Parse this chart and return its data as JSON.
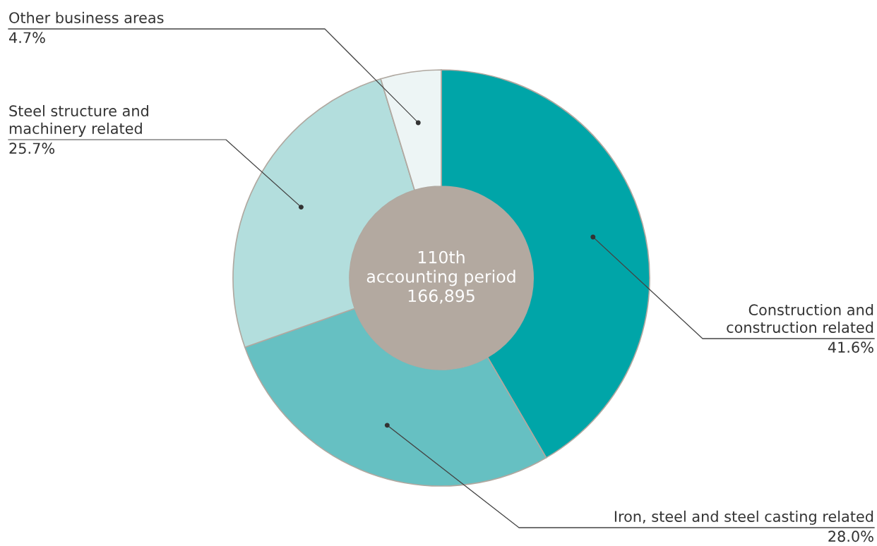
{
  "chart_data": {
    "type": "donut",
    "categories": [
      "Construction and\nconstruction related",
      "Iron, steel and steel casting related",
      "Steel structure and\nmachinery related",
      "Other business areas"
    ],
    "values": [
      41.6,
      28.0,
      25.7,
      4.7
    ],
    "colors": [
      "#00a5a8",
      "#66c0c2",
      "#b3dedd",
      "#edf5f5"
    ],
    "value_labels": [
      "41.6%",
      "28.0%",
      "25.7%",
      "4.7%"
    ],
    "annotations": [
      "110th\naccounting period\n166,895"
    ]
  }
}
